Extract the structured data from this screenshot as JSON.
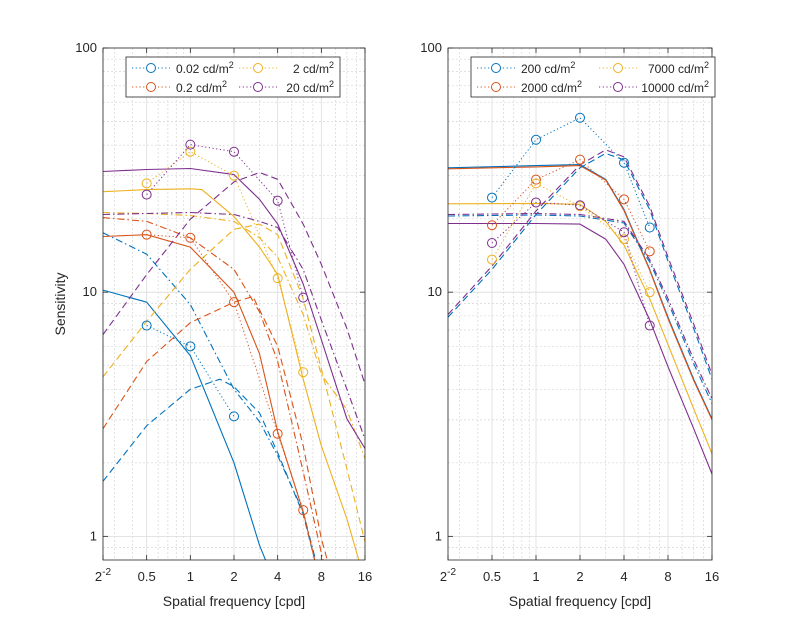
{
  "colors": {
    "blue": "#0072BD",
    "orange": "#D95319",
    "yellow": "#EDB120",
    "purple": "#7E2F8E",
    "axis": "#262626"
  },
  "chart_data": [
    {
      "type": "line",
      "xlabel": "Spatial frequency [cpd]",
      "ylabel": "Sensitivity",
      "xscale": "log2",
      "yscale": "log10",
      "xlim": [
        0.25,
        16
      ],
      "ylim": [
        0.8,
        100
      ],
      "xticks": [
        {
          "v": 0.25,
          "label": "2",
          "sup": "-2"
        },
        {
          "v": 0.5,
          "label": "0.5"
        },
        {
          "v": 1,
          "label": "1"
        },
        {
          "v": 2,
          "label": "2"
        },
        {
          "v": 4,
          "label": "4"
        },
        {
          "v": 8,
          "label": "8"
        },
        {
          "v": 16,
          "label": "16"
        }
      ],
      "yticks": [
        {
          "v": 1,
          "label": "1"
        },
        {
          "v": 10,
          "label": "10"
        },
        {
          "v": 100,
          "label": "100"
        }
      ],
      "grid": true,
      "legend": {
        "placement": "top",
        "columns": 2
      },
      "series": [
        {
          "name": "0.02 cd/m",
          "sup": "2",
          "color": "blue",
          "style": "dotted-markers",
          "x": [
            0.5,
            1,
            2
          ],
          "y": [
            7.3,
            6.0,
            3.1
          ]
        },
        {
          "name": "0.2 cd/m",
          "sup": "2",
          "color": "orange",
          "style": "dotted-markers",
          "x": [
            0.5,
            1,
            2,
            4,
            6
          ],
          "y": [
            17.2,
            16.7,
            9.1,
            2.63,
            1.28
          ]
        },
        {
          "name": "2 cd/m",
          "sup": "2",
          "color": "yellow",
          "style": "dotted-markers",
          "x": [
            0.5,
            1,
            2,
            4,
            6
          ],
          "y": [
            27.9,
            37.6,
            30,
            11.4,
            4.7
          ]
        },
        {
          "name": "20 cd/m",
          "sup": "2",
          "color": "purple",
          "style": "dotted-markers",
          "x": [
            0.5,
            1,
            2,
            4,
            6
          ],
          "y": [
            25.1,
            40.2,
            37.6,
            23.7,
            9.5
          ]
        },
        {
          "color": "blue",
          "style": "solid",
          "x": [
            0.25,
            0.5,
            1,
            2,
            3,
            3.3
          ],
          "y": [
            10.2,
            9.1,
            5.5,
            2.0,
            0.92,
            0.8
          ]
        },
        {
          "color": "blue",
          "style": "dashed",
          "x": [
            0.25,
            0.5,
            1,
            1.6,
            2,
            3,
            4,
            6,
            7.2
          ],
          "y": [
            1.68,
            2.84,
            4.0,
            4.4,
            4.1,
            3.2,
            2.2,
            1.23,
            0.8
          ]
        },
        {
          "color": "blue",
          "style": "dashdot",
          "x": [
            0.25,
            0.5,
            1,
            2,
            3,
            4,
            6,
            7.3
          ],
          "y": [
            17.5,
            14.3,
            8.9,
            4.0,
            2.95,
            2.14,
            1.26,
            0.8
          ]
        },
        {
          "color": "orange",
          "style": "solid",
          "x": [
            0.25,
            0.5,
            1,
            2,
            3,
            4,
            6,
            7.2
          ],
          "y": [
            16.9,
            17.2,
            15.3,
            10,
            5.6,
            2.68,
            1.26,
            0.8
          ]
        },
        {
          "color": "orange",
          "style": "dashed",
          "x": [
            0.25,
            0.5,
            1,
            2,
            2.7,
            4,
            6,
            8,
            8.8
          ],
          "y": [
            2.76,
            5.2,
            7.5,
            9.1,
            9.6,
            6.0,
            2.35,
            0.98,
            0.8
          ]
        },
        {
          "color": "orange",
          "style": "dashdot",
          "x": [
            0.25,
            0.5,
            1,
            2,
            3,
            4,
            6,
            8.2
          ],
          "y": [
            20.2,
            19.5,
            16.7,
            12.4,
            8.3,
            5.2,
            1.84,
            0.8
          ]
        },
        {
          "color": "yellow",
          "style": "solid",
          "x": [
            0.25,
            0.5,
            1,
            1.2,
            2,
            3,
            4,
            6,
            8,
            12,
            14.5
          ],
          "y": [
            25.8,
            26.3,
            26.5,
            26.3,
            20.4,
            15.3,
            11.8,
            4.4,
            2.35,
            1.18,
            0.8
          ]
        },
        {
          "color": "yellow",
          "style": "dashed",
          "x": [
            0.25,
            0.5,
            1,
            2,
            3,
            4,
            6,
            8,
            12,
            16
          ],
          "y": [
            4.5,
            7.6,
            12.4,
            18.1,
            19,
            17.2,
            9.4,
            4.85,
            1.89,
            0.95
          ]
        },
        {
          "color": "yellow",
          "style": "dashdot",
          "x": [
            0.25,
            0.5,
            1,
            2,
            3,
            4,
            6,
            8,
            12,
            16
          ],
          "y": [
            21.2,
            21.0,
            20.6,
            19.5,
            16.7,
            13.9,
            8.1,
            4.6,
            3.3,
            2.08
          ]
        },
        {
          "color": "purple",
          "style": "solid",
          "x": [
            0.25,
            0.5,
            1,
            2,
            3,
            4,
            6,
            8,
            12,
            16
          ],
          "y": [
            31.2,
            31.8,
            32.1,
            30.3,
            24.0,
            19,
            10.8,
            6.4,
            3.03,
            2.29
          ]
        },
        {
          "color": "purple",
          "style": "dashed",
          "x": [
            0.25,
            0.5,
            1,
            2,
            3,
            4,
            6,
            8,
            12,
            16
          ],
          "y": [
            6.7,
            11.8,
            19.9,
            28.3,
            30.9,
            29,
            19,
            13,
            7.1,
            4.2
          ]
        },
        {
          "color": "purple",
          "style": "dashdot",
          "x": [
            0.25,
            0.5,
            1,
            2,
            3,
            4,
            6,
            8,
            12,
            16
          ],
          "y": [
            20.8,
            21.0,
            21.2,
            20.8,
            19.5,
            18.4,
            12.4,
            7.7,
            4.0,
            2.5
          ]
        }
      ]
    },
    {
      "type": "line",
      "xlabel": "Spatial frequency [cpd]",
      "ylabel": "",
      "xscale": "log2",
      "yscale": "log10",
      "xlim": [
        0.25,
        16
      ],
      "ylim": [
        0.8,
        100
      ],
      "xticks": [
        {
          "v": 0.25,
          "label": "2",
          "sup": "-2"
        },
        {
          "v": 0.5,
          "label": "0.5"
        },
        {
          "v": 1,
          "label": "1"
        },
        {
          "v": 2,
          "label": "2"
        },
        {
          "v": 4,
          "label": "4"
        },
        {
          "v": 8,
          "label": "8"
        },
        {
          "v": 16,
          "label": "16"
        }
      ],
      "yticks": [
        {
          "v": 1,
          "label": "1"
        },
        {
          "v": 10,
          "label": "10"
        },
        {
          "v": 100,
          "label": "100"
        }
      ],
      "grid": true,
      "legend": {
        "placement": "top",
        "columns": 2
      },
      "series": [
        {
          "name": "200 cd/m",
          "sup": "2",
          "color": "blue",
          "style": "dotted-markers",
          "x": [
            0.5,
            1,
            2,
            4,
            6
          ],
          "y": [
            24.4,
            42.1,
            51.8,
            33.9,
            18.4
          ]
        },
        {
          "name": "2000 cd/m",
          "sup": "2",
          "color": "orange",
          "style": "dotted-markers",
          "x": [
            0.5,
            1,
            2,
            4,
            6
          ],
          "y": [
            18.8,
            28.9,
            34.9,
            24,
            14.7
          ]
        },
        {
          "name": "7000 cd/m",
          "sup": "2",
          "color": "yellow",
          "style": "dotted-markers",
          "x": [
            0.5,
            1,
            2,
            4,
            6
          ],
          "y": [
            13.6,
            27.9,
            22.5,
            16.5,
            10
          ]
        },
        {
          "name": "10000 cd/m",
          "sup": "2",
          "color": "purple",
          "style": "dotted-markers",
          "x": [
            0.5,
            1,
            2,
            4,
            6
          ],
          "y": [
            15.9,
            23.3,
            22.7,
            17.6,
            7.3
          ]
        },
        {
          "color": "blue",
          "style": "solid",
          "x": [
            0.25,
            1,
            2,
            3,
            4,
            6,
            8,
            12,
            16
          ],
          "y": [
            32.3,
            33,
            33.3,
            29,
            21.8,
            12.4,
            7.9,
            4.4,
            3.03
          ]
        },
        {
          "color": "orange",
          "style": "solid",
          "x": [
            0.25,
            1,
            2,
            3,
            4,
            6,
            8,
            12,
            16
          ],
          "y": [
            32.0,
            32.6,
            33.0,
            28.8,
            21.6,
            12.3,
            7.8,
            4.35,
            3.0
          ]
        },
        {
          "color": "yellow",
          "style": "solid",
          "x": [
            0.25,
            1,
            2,
            3,
            4,
            6,
            8,
            12,
            16
          ],
          "y": [
            23,
            23.1,
            22.9,
            19.5,
            15.6,
            9.4,
            6.1,
            3.33,
            2.18
          ]
        },
        {
          "color": "purple",
          "style": "solid",
          "x": [
            0.25,
            1,
            2,
            3,
            4,
            6,
            8,
            12,
            16
          ],
          "y": [
            19.1,
            19.1,
            19,
            16.5,
            13,
            7.7,
            4.95,
            2.76,
            1.8
          ]
        },
        {
          "color": "blue",
          "style": "dashed",
          "x": [
            0.25,
            0.5,
            1,
            2,
            3,
            4,
            6,
            8,
            12,
            16
          ],
          "y": [
            7.9,
            12.4,
            20.8,
            32.3,
            37.0,
            34.8,
            21.8,
            13.4,
            7.1,
            4.4
          ]
        },
        {
          "color": "purple",
          "style": "dashed",
          "x": [
            0.25,
            0.5,
            1,
            2,
            3,
            4,
            6,
            8,
            12,
            16
          ],
          "y": [
            8.1,
            12.8,
            21.5,
            33.2,
            38.3,
            35.8,
            22.5,
            13.9,
            7.4,
            4.6
          ]
        },
        {
          "color": "blue",
          "style": "dashdot",
          "x": [
            0.25,
            1,
            2,
            4,
            6,
            8,
            12,
            16
          ],
          "y": [
            20.5,
            20.7,
            20.5,
            19.2,
            13.3,
            9.1,
            5.1,
            3.5
          ]
        },
        {
          "color": "purple",
          "style": "dashdot",
          "x": [
            0.25,
            1,
            2,
            4,
            6,
            8,
            12,
            16
          ],
          "y": [
            20.8,
            21.0,
            20.8,
            19.5,
            13.6,
            9.4,
            5.3,
            3.66
          ]
        }
      ]
    }
  ]
}
